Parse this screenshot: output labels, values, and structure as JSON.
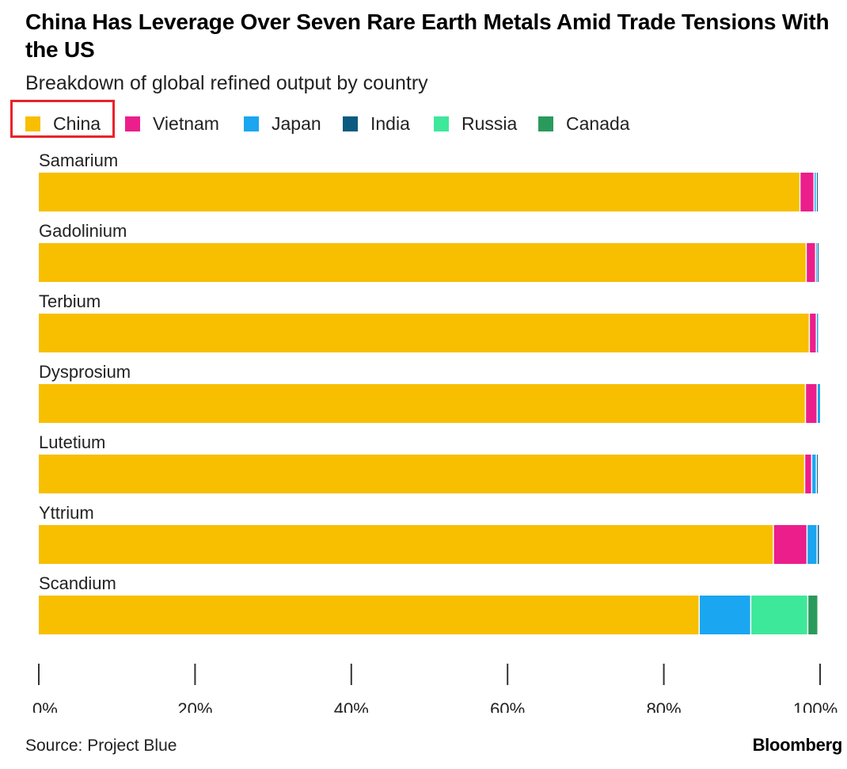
{
  "header": {
    "title": "China Has Leverage Over Seven Rare Earth Metals Amid Trade Tensions With the US",
    "subtitle": "Breakdown of global refined output by country"
  },
  "legend": [
    {
      "label": "China",
      "color": "#f7bf00"
    },
    {
      "label": "Vietnam",
      "color": "#ec1e8c"
    },
    {
      "label": "Japan",
      "color": "#1aa6f0"
    },
    {
      "label": "India",
      "color": "#0b5a80"
    },
    {
      "label": "Russia",
      "color": "#3ee89a"
    },
    {
      "label": "Canada",
      "color": "#2a9a5c"
    }
  ],
  "highlight": {
    "target": "China",
    "color": "#e8232b"
  },
  "chart_data": {
    "type": "bar",
    "orientation": "horizontal",
    "stacked": true,
    "categories": [
      "Samarium",
      "Gadolinium",
      "Terbium",
      "Dysprosium",
      "Lutetium",
      "Yttrium",
      "Scandium"
    ],
    "series": [
      {
        "name": "China",
        "color": "#f7bf00",
        "values": [
          97.5,
          98.3,
          98.7,
          98.2,
          98.1,
          94.1,
          84.6
        ]
      },
      {
        "name": "Vietnam",
        "color": "#ec1e8c",
        "values": [
          1.8,
          1.2,
          0.9,
          1.5,
          0.9,
          4.3,
          0
        ]
      },
      {
        "name": "Japan",
        "color": "#1aa6f0",
        "values": [
          0.3,
          0.2,
          0.3,
          0.3,
          0.6,
          1.3,
          6.6
        ]
      },
      {
        "name": "India",
        "color": "#0b5a80",
        "values": [
          0.2,
          0.1,
          0,
          0,
          0.2,
          0.3,
          0
        ]
      },
      {
        "name": "Russia",
        "color": "#3ee89a",
        "values": [
          0,
          0,
          0,
          0,
          0,
          0,
          7.3
        ]
      },
      {
        "name": "Canada",
        "color": "#2a9a5c",
        "values": [
          0,
          0,
          0,
          0,
          0,
          0,
          1.3
        ]
      }
    ],
    "xlim": [
      0,
      100
    ],
    "xticks": [
      "0%",
      "20%",
      "40%",
      "60%",
      "80%",
      "100%"
    ],
    "grid": false,
    "legend_position": "top-left"
  },
  "footer": {
    "source": "Source: Project Blue",
    "brand": "Bloomberg"
  }
}
